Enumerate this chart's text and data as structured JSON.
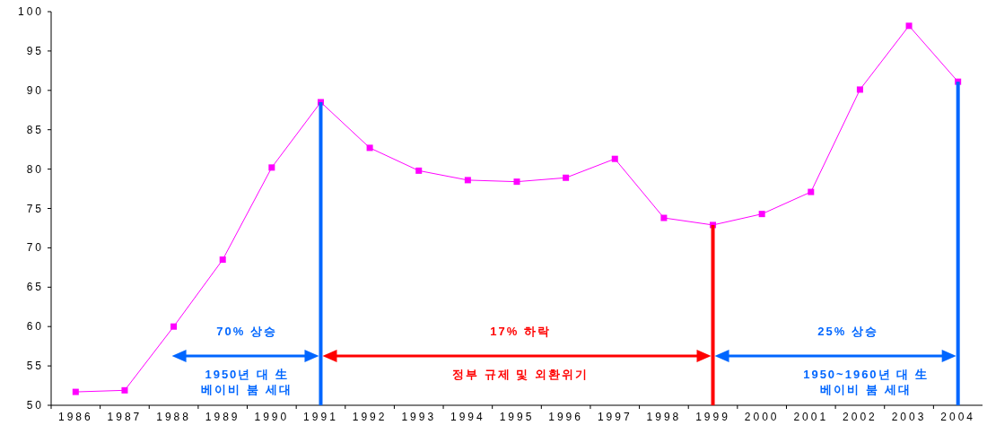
{
  "chart_data": {
    "type": "line",
    "categories": [
      "1986",
      "1987",
      "1988",
      "1989",
      "1990",
      "1991",
      "1992",
      "1993",
      "1994",
      "1995",
      "1996",
      "1997",
      "1998",
      "1999",
      "2000",
      "2001",
      "2002",
      "2003",
      "2004"
    ],
    "series": [
      {
        "color": "#ff00ff",
        "marker": "square",
        "values": [
          51.7,
          51.9,
          60.0,
          68.5,
          80.2,
          88.5,
          82.7,
          79.8,
          78.6,
          78.4,
          78.9,
          81.3,
          73.8,
          72.9,
          74.3,
          77.1,
          90.1,
          98.2,
          91.1
        ]
      },
      {
        "type": "bar",
        "color": "#0066ff",
        "values": [
          null,
          null,
          null,
          null,
          null,
          88.5,
          null,
          null,
          null,
          null,
          null,
          null,
          null,
          null,
          null,
          null,
          null,
          null,
          91.1
        ]
      },
      {
        "type": "bar",
        "color": "#ff0000",
        "values": [
          null,
          null,
          null,
          null,
          null,
          null,
          null,
          null,
          null,
          null,
          null,
          null,
          null,
          72.9,
          null,
          null,
          null,
          null,
          null
        ]
      }
    ],
    "ylim": [
      50,
      100
    ],
    "yticks": [
      50,
      55,
      60,
      65,
      70,
      75,
      80,
      85,
      90,
      95,
      100
    ],
    "grid": false,
    "annotations": [
      "70% 상승",
      "1950년 대 生\n베이비 붐 세대",
      "17% 하락",
      "정부 규제 및 외환위기",
      "25% 상승",
      "1950~1960년 대 生\n베이비 붐 세대"
    ]
  }
}
